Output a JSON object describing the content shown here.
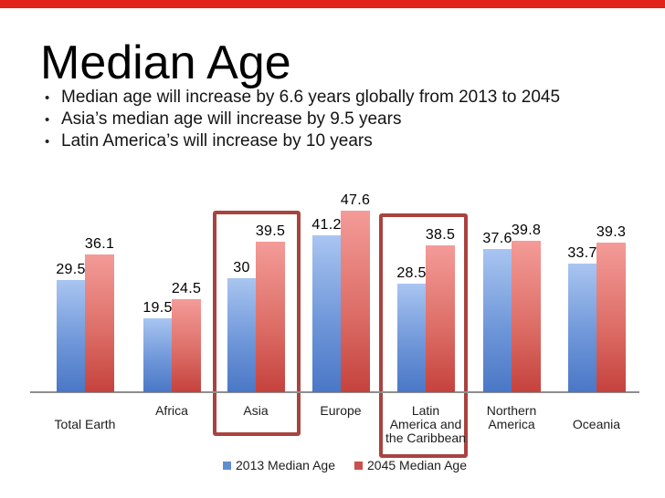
{
  "slide": {
    "title": "Median Age",
    "bullets": [
      "Median age will increase by 6.6 years globally from 2013 to 2045",
      "Asia’s median age will increase by 9.5 years",
      "Latin America’s will increase by 10 years"
    ],
    "accent_bar_color": "#e2231a"
  },
  "chart_data": {
    "type": "bar",
    "title": "",
    "xlabel": "",
    "ylabel": "",
    "ylim": [
      0,
      50
    ],
    "grid": false,
    "axes_ticks_visible": false,
    "legend_position": "bottom",
    "categories": [
      "Total Earth",
      "Africa",
      "Asia",
      "Europe",
      "Latin America and the Caribbean",
      "Northern America",
      "Oceania"
    ],
    "category_lines": [
      [
        "Total Earth"
      ],
      [
        "Africa"
      ],
      [
        "Asia"
      ],
      [
        "Europe"
      ],
      [
        "Latin",
        "America and",
        "the Caribbean"
      ],
      [
        "Northern",
        "America"
      ],
      [
        "Oceania"
      ]
    ],
    "category_row_offset": [
      1,
      0,
      0,
      0,
      0,
      0,
      1
    ],
    "series": [
      {
        "name": "2013 Median Age",
        "values": [
          29.5,
          19.5,
          30,
          41.2,
          28.5,
          37.6,
          33.7
        ],
        "color_top": "#a9c5f1",
        "color_bottom": "#4a77c6",
        "legend_color": "#5f8ed0"
      },
      {
        "name": "2045 Median Age",
        "values": [
          36.1,
          24.5,
          39.5,
          47.6,
          38.5,
          39.8,
          39.3
        ],
        "color_top": "#f49b98",
        "color_bottom": "#c5423d",
        "legend_color": "#c9504c"
      }
    ],
    "highlighted_categories": [
      "Asia",
      "Latin America and the Caribbean"
    ],
    "highlight_box_color": "#a8433f"
  }
}
